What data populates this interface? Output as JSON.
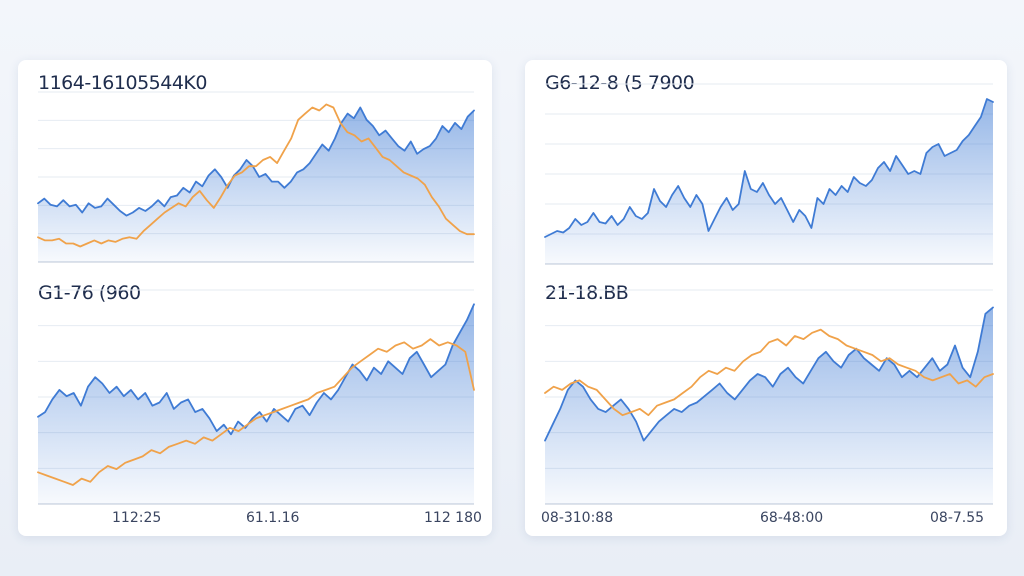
{
  "charts": [
    {
      "title": "1164-16105544K0",
      "colors": {
        "primary": "#3f7bd4",
        "secondary": "#f0a24a"
      },
      "chart_data": {
        "type": "area",
        "series": [
          {
            "values": [
              38,
              41,
              37,
              36,
              40,
              36,
              37,
              32,
              38,
              35,
              36,
              41,
              37,
              33,
              30,
              32,
              35,
              33,
              36,
              40,
              36,
              42,
              43,
              48,
              45,
              52,
              49,
              56,
              60,
              55,
              48,
              56,
              60,
              66,
              62,
              55,
              57,
              52,
              52,
              48,
              52,
              58,
              60,
              64,
              70,
              76,
              72,
              80,
              90,
              96,
              93,
              100,
              92,
              88,
              82,
              85,
              80,
              75,
              72,
              78,
              70,
              73,
              75,
              80,
              88,
              84,
              90,
              86,
              94,
              98
            ]
          },
          {
            "values": [
              16,
              14,
              14,
              15,
              12,
              12,
              10,
              12,
              14,
              12,
              14,
              13,
              15,
              16,
              15,
              20,
              24,
              28,
              32,
              35,
              38,
              36,
              42,
              46,
              40,
              35,
              42,
              50,
              56,
              58,
              62,
              62,
              66,
              68,
              64,
              72,
              80,
              92,
              96,
              100,
              98,
              102,
              100,
              90,
              84,
              82,
              78,
              80,
              74,
              68,
              66,
              62,
              58,
              56,
              54,
              50,
              42,
              36,
              28,
              24,
              20,
              18,
              18
            ]
          }
        ],
        "ylim": [
          0,
          110
        ],
        "xticks": [],
        "grid": true
      }
    },
    {
      "title": "G6-12-8 (5 7900",
      "colors": {
        "primary": "#3f7bd4",
        "secondary": "#f0a24a"
      },
      "chart_data": {
        "type": "area",
        "series": [
          {
            "values": [
              18,
              20,
              22,
              21,
              24,
              30,
              26,
              28,
              34,
              28,
              27,
              32,
              26,
              30,
              38,
              32,
              30,
              34,
              50,
              42,
              38,
              46,
              52,
              44,
              38,
              46,
              40,
              22,
              30,
              38,
              44,
              36,
              40,
              62,
              50,
              48,
              54,
              46,
              40,
              44,
              36,
              28,
              36,
              32,
              24,
              44,
              40,
              50,
              46,
              52,
              48,
              58,
              54,
              52,
              56,
              64,
              68,
              62,
              72,
              66,
              60,
              62,
              60,
              74,
              78,
              80,
              72,
              74,
              76,
              82,
              86,
              92,
              98,
              110,
              108
            ]
          }
        ],
        "ylim": [
          0,
          120
        ],
        "xticks": [],
        "grid": true
      }
    },
    {
      "title": "G1-76 (960",
      "colors": {
        "primary": "#3f7bd4",
        "secondary": "#f0a24a"
      },
      "chart_data": {
        "type": "area",
        "series": [
          {
            "values": [
              55,
              58,
              66,
              72,
              68,
              70,
              62,
              74,
              80,
              76,
              70,
              74,
              68,
              72,
              66,
              70,
              62,
              64,
              70,
              60,
              64,
              66,
              58,
              60,
              54,
              46,
              50,
              44,
              52,
              48,
              54,
              58,
              52,
              60,
              56,
              52,
              60,
              62,
              56,
              64,
              70,
              66,
              72,
              80,
              88,
              84,
              78,
              86,
              82,
              90,
              86,
              82,
              92,
              96,
              88,
              80,
              84,
              88,
              100,
              108,
              116,
              126
            ]
          },
          {
            "values": [
              20,
              18,
              16,
              14,
              12,
              16,
              14,
              20,
              24,
              22,
              26,
              28,
              30,
              34,
              32,
              36,
              38,
              40,
              38,
              42,
              40,
              44,
              48,
              46,
              50,
              54,
              56,
              58,
              60,
              62,
              64,
              66,
              70,
              72,
              74,
              80,
              86,
              90,
              94,
              98,
              96,
              100,
              102,
              98,
              100,
              104,
              100,
              102,
              100,
              96,
              72
            ]
          }
        ],
        "ylim": [
          0,
          135
        ],
        "xticks": [
          "112:25",
          "61.1.16",
          "112 180"
        ],
        "grid": true
      }
    },
    {
      "title": "21-18.BB",
      "colors": {
        "primary": "#3f7bd4",
        "secondary": "#f0a24a"
      },
      "chart_data": {
        "type": "area",
        "series": [
          {
            "values": [
              40,
              50,
              60,
              72,
              78,
              74,
              66,
              60,
              58,
              62,
              66,
              60,
              52,
              40,
              46,
              52,
              56,
              60,
              58,
              62,
              64,
              68,
              72,
              76,
              70,
              66,
              72,
              78,
              82,
              80,
              74,
              82,
              86,
              80,
              76,
              84,
              92,
              96,
              90,
              86,
              94,
              98,
              92,
              88,
              84,
              92,
              88,
              80,
              84,
              80,
              86,
              92,
              84,
              88,
              100,
              86,
              80,
              96,
              120,
              124
            ]
          },
          {
            "values": [
              70,
              74,
              72,
              76,
              78,
              74,
              72,
              66,
              60,
              56,
              58,
              60,
              56,
              62,
              64,
              66,
              70,
              74,
              80,
              84,
              82,
              86,
              84,
              90,
              94,
              96,
              102,
              104,
              100,
              106,
              104,
              108,
              110,
              106,
              104,
              100,
              98,
              96,
              94,
              90,
              92,
              88,
              86,
              84,
              80,
              78,
              80,
              82,
              76,
              78,
              74,
              80,
              82
            ]
          }
        ],
        "ylim": [
          0,
          135
        ],
        "xticks": [
          "08-310:88",
          "68-48:00",
          "08-7.55"
        ],
        "grid": true
      }
    }
  ]
}
